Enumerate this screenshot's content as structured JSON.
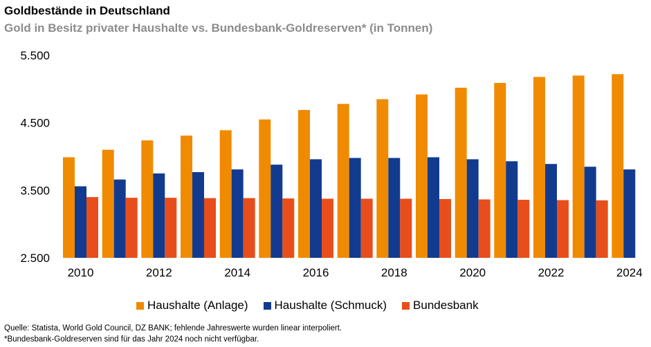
{
  "chart_data": {
    "type": "bar",
    "title": "Goldbestände in Deutschland",
    "subtitle": "Gold in Besitz privater Haushalte vs. Bundesbank-Goldreserven* (in Tonnen)",
    "categories": [
      "2010",
      "2011",
      "2012",
      "2013",
      "2014",
      "2015",
      "2016",
      "2017",
      "2018",
      "2019",
      "2020",
      "2021",
      "2022",
      "2023",
      "2024"
    ],
    "x_tick_labels": [
      "2010",
      "2012",
      "2014",
      "2016",
      "2018",
      "2020",
      "2022",
      "2024"
    ],
    "y_tick_labels": [
      "5.500",
      "4.500",
      "3.500",
      "2.500"
    ],
    "y_ticks": [
      5500,
      4500,
      3500,
      2500
    ],
    "ylim": [
      2500,
      5500
    ],
    "grid": false,
    "legend_position": "bottom",
    "series": [
      {
        "name": "Haushalte (Anlage)",
        "color": "#f08a00",
        "values": [
          3990,
          4100,
          4240,
          4310,
          4390,
          4550,
          4690,
          4780,
          4850,
          4920,
          5020,
          5090,
          5180,
          5200,
          5220
        ]
      },
      {
        "name": "Haushalte (Schmuck)",
        "color": "#123b8f",
        "values": [
          3560,
          3660,
          3750,
          3770,
          3810,
          3880,
          3960,
          3980,
          3980,
          3990,
          3960,
          3930,
          3890,
          3850,
          3810
        ]
      },
      {
        "name": "Bundesbank",
        "color": "#e84e1b",
        "values": [
          3400,
          3390,
          3390,
          3385,
          3385,
          3380,
          3375,
          3375,
          3375,
          3370,
          3365,
          3360,
          3355,
          3352,
          null
        ]
      }
    ]
  },
  "footer": {
    "source": "Quelle: Statista, World Gold Council, DZ BANK; fehlende Jahreswerte wurden linear interpoliert.",
    "note": "*Bundesbank-Goldreserven sind für das Jahr 2024 noch nicht verfügbar."
  }
}
